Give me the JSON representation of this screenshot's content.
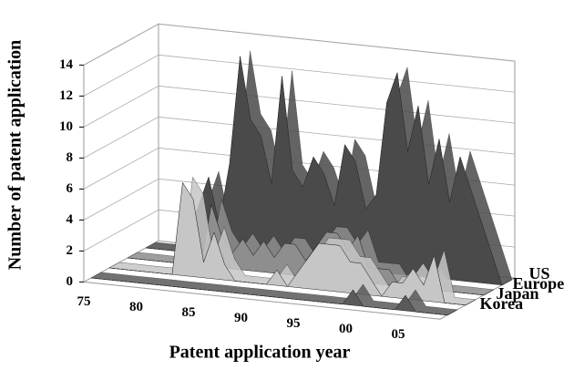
{
  "chart_data": {
    "type": "area3d",
    "x_label": "Patent application year",
    "y_label": "Number of patent application",
    "categories": [
      "75",
      null,
      null,
      null,
      null,
      "80",
      null,
      null,
      null,
      null,
      "85",
      null,
      null,
      null,
      null,
      "90",
      null,
      null,
      null,
      null,
      "95",
      null,
      null,
      null,
      null,
      "00",
      null,
      null,
      null,
      null,
      "05",
      null,
      null,
      null,
      null
    ],
    "series": [
      {
        "name": "US",
        "color": "#4a4a4a",
        "values": [
          0,
          0,
          0,
          0,
          1,
          3,
          5,
          2,
          6,
          13,
          9,
          8,
          5,
          12,
          6,
          5,
          7,
          6,
          4,
          8,
          7,
          4,
          5,
          11,
          13,
          8,
          11,
          6,
          9,
          5,
          8,
          6,
          4,
          2,
          0
        ]
      },
      {
        "name": "Europe",
        "color": "#8e8e8e",
        "values": [
          0,
          0,
          0,
          0,
          0,
          0,
          0,
          0,
          4,
          2,
          1,
          2,
          1,
          2,
          1,
          2,
          2,
          1,
          2,
          3,
          3,
          2,
          3,
          1,
          1,
          1,
          0,
          0,
          0,
          1,
          0,
          0,
          0,
          0,
          0
        ]
      },
      {
        "name": "Japan",
        "color": "#c6c6c6",
        "values": [
          0,
          0,
          0,
          0,
          0,
          0,
          0,
          6,
          5,
          1,
          3,
          1,
          0,
          0,
          0,
          0,
          1,
          0,
          1,
          2,
          3,
          3,
          3,
          2,
          2,
          1,
          0,
          1,
          1,
          2,
          1,
          3,
          0,
          0,
          0
        ]
      },
      {
        "name": "Korea",
        "color": "#5a5a5a",
        "values": [
          0,
          0,
          0,
          0,
          0,
          0,
          0,
          0,
          0,
          0,
          0,
          0,
          0,
          0,
          0,
          0,
          0,
          0,
          0,
          0,
          0,
          0,
          0,
          0,
          0,
          1,
          0,
          0,
          0,
          0,
          1,
          0,
          0,
          0,
          0
        ]
      }
    ],
    "ylim": [
      0,
      14
    ],
    "yticks": [
      0,
      2,
      4,
      6,
      8,
      10,
      12,
      14
    ],
    "grid": true
  }
}
